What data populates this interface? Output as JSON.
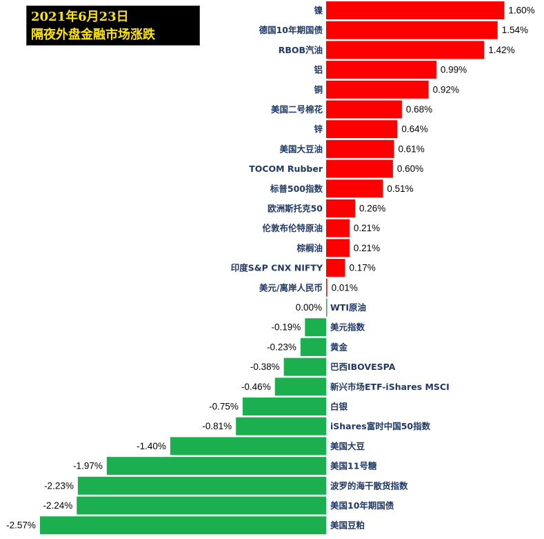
{
  "title": {
    "line1": "2021年6月23日",
    "line2": "隔夜外盘金融市场涨跌"
  },
  "colors": {
    "positive": "#FF0000",
    "negative": "#1CAF50",
    "title_bg": "#000000",
    "title_text": "#FFE600",
    "category_text": "#1F3864"
  },
  "chart_data": {
    "type": "bar",
    "orientation": "horizontal",
    "unit": "%",
    "title": "2021年6月23日 隔夜外盘金融市场涨跌",
    "categories": [
      "镍",
      "德国10年期国债",
      "RBOB汽油",
      "铝",
      "铜",
      "美国二号棉花",
      "锌",
      "美国大豆油",
      "TOCOM Rubber",
      "标普500指数",
      "欧洲斯托克50",
      "伦敦布伦特原油",
      "棕榈油",
      "印度S&P CNX NIFTY",
      "美元/离岸人民币",
      "WTI原油",
      "美元指数",
      "黄金",
      "巴西IBOVESPA",
      "新兴市场ETF-iShares MSCI",
      "白银",
      "iShares富时中国50指数",
      "美国大豆",
      "美国11号糖",
      "波罗的海干散货指数",
      "美国10年期国债",
      "美国豆粕"
    ],
    "values": [
      1.6,
      1.54,
      1.42,
      0.99,
      0.92,
      0.68,
      0.64,
      0.61,
      0.6,
      0.51,
      0.26,
      0.21,
      0.21,
      0.17,
      0.01,
      0.0,
      -0.19,
      -0.23,
      -0.38,
      -0.46,
      -0.75,
      -0.81,
      -1.4,
      -1.97,
      -2.23,
      -2.24,
      -2.57
    ],
    "value_labels": [
      "1.60%",
      "1.54%",
      "1.42%",
      "0.99%",
      "0.92%",
      "0.68%",
      "0.64%",
      "0.61%",
      "0.60%",
      "0.51%",
      "0.26%",
      "0.21%",
      "0.21%",
      "0.17%",
      "0.01%",
      "0.00%",
      "-0.19%",
      "-0.23%",
      "-0.38%",
      "-0.46%",
      "-0.75%",
      "-0.81%",
      "-1.40%",
      "-1.97%",
      "-2.23%",
      "-2.24%",
      "-2.57%"
    ],
    "xlim": [
      -2.57,
      1.6
    ],
    "grid": false,
    "legend": "none"
  }
}
